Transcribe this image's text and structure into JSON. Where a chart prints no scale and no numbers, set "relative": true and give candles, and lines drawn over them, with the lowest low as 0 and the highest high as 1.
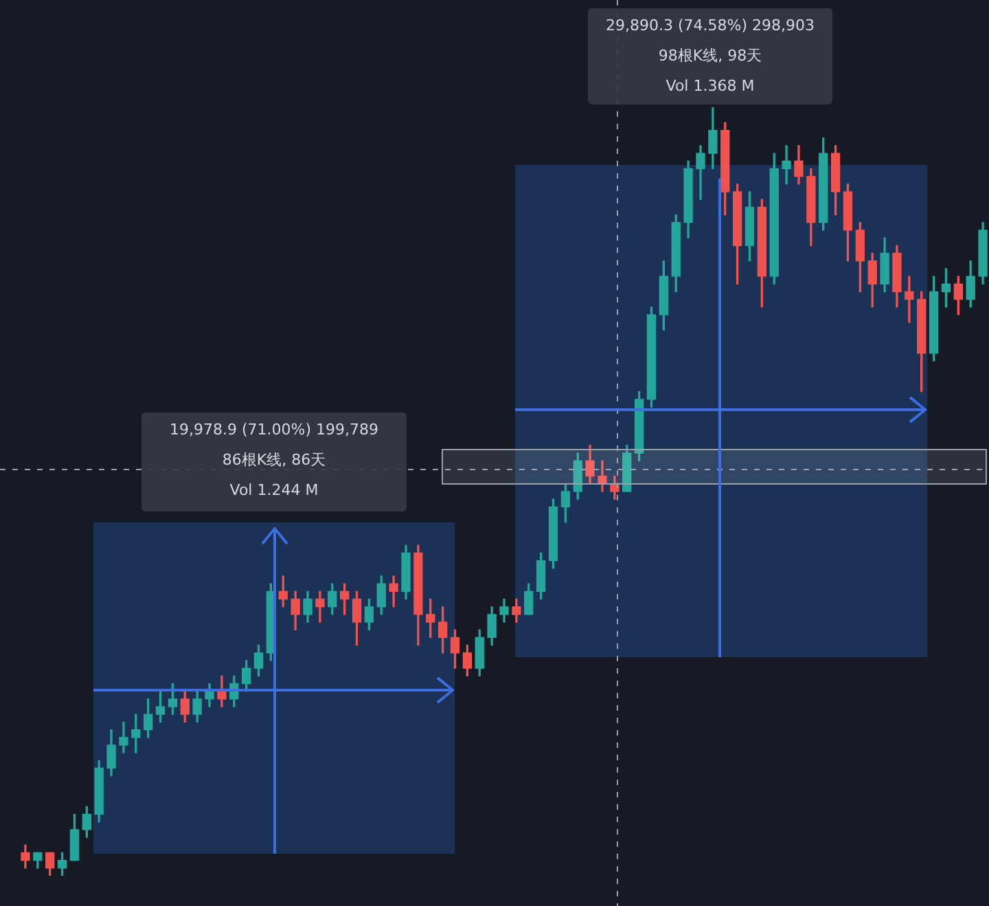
{
  "chart_data": {
    "type": "candlestick",
    "relative": true,
    "categories": [
      null,
      null,
      null,
      null,
      null,
      null,
      null,
      null,
      null,
      null,
      null,
      null,
      null,
      null,
      null,
      null,
      null,
      null,
      null,
      null,
      null,
      null,
      null,
      null,
      null,
      null,
      null,
      null,
      null,
      null,
      null,
      null,
      null,
      null,
      null,
      null,
      null,
      null,
      null,
      null,
      null,
      null,
      null,
      null,
      null,
      null,
      null,
      null,
      null,
      null,
      null,
      null,
      null,
      null,
      null,
      null,
      null,
      null,
      null,
      null,
      null,
      null,
      null,
      null,
      null,
      null,
      null,
      null,
      null,
      null,
      null,
      null,
      null,
      null,
      null,
      null,
      null,
      null,
      null
    ],
    "ohlc": [
      [
        0.03,
        0.04,
        0.01,
        0.02
      ],
      [
        0.02,
        0.03,
        0.01,
        0.03
      ],
      [
        0.03,
        0.03,
        0.0,
        0.01
      ],
      [
        0.01,
        0.03,
        0.0,
        0.02
      ],
      [
        0.02,
        0.08,
        0.02,
        0.06
      ],
      [
        0.06,
        0.09,
        0.05,
        0.08
      ],
      [
        0.08,
        0.15,
        0.07,
        0.14
      ],
      [
        0.14,
        0.19,
        0.13,
        0.17
      ],
      [
        0.17,
        0.2,
        0.16,
        0.18
      ],
      [
        0.18,
        0.21,
        0.16,
        0.19
      ],
      [
        0.19,
        0.23,
        0.18,
        0.21
      ],
      [
        0.21,
        0.24,
        0.2,
        0.22
      ],
      [
        0.22,
        0.25,
        0.21,
        0.23
      ],
      [
        0.23,
        0.24,
        0.2,
        0.21
      ],
      [
        0.21,
        0.24,
        0.2,
        0.23
      ],
      [
        0.23,
        0.25,
        0.22,
        0.24
      ],
      [
        0.24,
        0.26,
        0.22,
        0.23
      ],
      [
        0.23,
        0.26,
        0.22,
        0.25
      ],
      [
        0.25,
        0.28,
        0.24,
        0.27
      ],
      [
        0.27,
        0.3,
        0.26,
        0.29
      ],
      [
        0.29,
        0.38,
        0.28,
        0.37
      ],
      [
        0.37,
        0.39,
        0.35,
        0.36
      ],
      [
        0.36,
        0.37,
        0.32,
        0.34
      ],
      [
        0.34,
        0.37,
        0.33,
        0.36
      ],
      [
        0.36,
        0.37,
        0.33,
        0.35
      ],
      [
        0.35,
        0.38,
        0.34,
        0.37
      ],
      [
        0.37,
        0.38,
        0.34,
        0.36
      ],
      [
        0.36,
        0.37,
        0.3,
        0.33
      ],
      [
        0.33,
        0.36,
        0.32,
        0.35
      ],
      [
        0.35,
        0.39,
        0.34,
        0.38
      ],
      [
        0.38,
        0.39,
        0.35,
        0.37
      ],
      [
        0.37,
        0.43,
        0.36,
        0.42
      ],
      [
        0.42,
        0.43,
        0.3,
        0.34
      ],
      [
        0.34,
        0.36,
        0.31,
        0.33
      ],
      [
        0.33,
        0.35,
        0.29,
        0.31
      ],
      [
        0.31,
        0.32,
        0.27,
        0.29
      ],
      [
        0.29,
        0.3,
        0.26,
        0.27
      ],
      [
        0.27,
        0.32,
        0.26,
        0.31
      ],
      [
        0.31,
        0.35,
        0.3,
        0.34
      ],
      [
        0.34,
        0.36,
        0.33,
        0.35
      ],
      [
        0.35,
        0.36,
        0.33,
        0.34
      ],
      [
        0.34,
        0.38,
        0.34,
        0.37
      ],
      [
        0.37,
        0.42,
        0.36,
        0.41
      ],
      [
        0.41,
        0.49,
        0.4,
        0.48
      ],
      [
        0.48,
        0.51,
        0.46,
        0.5
      ],
      [
        0.5,
        0.55,
        0.49,
        0.54
      ],
      [
        0.54,
        0.56,
        0.51,
        0.52
      ],
      [
        0.52,
        0.54,
        0.5,
        0.51
      ],
      [
        0.51,
        0.52,
        0.49,
        0.5
      ],
      [
        0.5,
        0.56,
        0.5,
        0.55
      ],
      [
        0.55,
        0.63,
        0.54,
        0.62
      ],
      [
        0.62,
        0.74,
        0.61,
        0.73
      ],
      [
        0.73,
        0.8,
        0.71,
        0.78
      ],
      [
        0.78,
        0.86,
        0.76,
        0.85
      ],
      [
        0.85,
        0.93,
        0.83,
        0.92
      ],
      [
        0.92,
        0.95,
        0.88,
        0.94
      ],
      [
        0.94,
        1.0,
        0.92,
        0.97
      ],
      [
        0.97,
        0.98,
        0.86,
        0.89
      ],
      [
        0.89,
        0.9,
        0.77,
        0.82
      ],
      [
        0.82,
        0.89,
        0.8,
        0.87
      ],
      [
        0.87,
        0.88,
        0.74,
        0.78
      ],
      [
        0.78,
        0.94,
        0.77,
        0.92
      ],
      [
        0.92,
        0.95,
        0.9,
        0.93
      ],
      [
        0.93,
        0.95,
        0.9,
        0.91
      ],
      [
        0.91,
        0.92,
        0.82,
        0.85
      ],
      [
        0.85,
        0.96,
        0.84,
        0.94
      ],
      [
        0.94,
        0.95,
        0.86,
        0.89
      ],
      [
        0.89,
        0.9,
        0.8,
        0.84
      ],
      [
        0.84,
        0.85,
        0.76,
        0.8
      ],
      [
        0.8,
        0.81,
        0.74,
        0.77
      ],
      [
        0.77,
        0.83,
        0.76,
        0.81
      ],
      [
        0.81,
        0.82,
        0.74,
        0.76
      ],
      [
        0.76,
        0.78,
        0.72,
        0.75
      ],
      [
        0.75,
        0.76,
        0.63,
        0.68
      ],
      [
        0.68,
        0.78,
        0.67,
        0.76
      ],
      [
        0.76,
        0.79,
        0.74,
        0.77
      ],
      [
        0.77,
        0.78,
        0.73,
        0.75
      ],
      [
        0.75,
        0.8,
        0.74,
        0.78
      ],
      [
        0.78,
        0.85,
        0.77,
        0.84
      ]
    ],
    "annotations": [
      "19,978.9 (71.00%) 199,789",
      "86根K线, 86天",
      "Vol 1.244 M",
      "29,890.3 (74.58%) 298,903",
      "98根K线, 98天",
      "Vol 1.368 M"
    ]
  }
}
